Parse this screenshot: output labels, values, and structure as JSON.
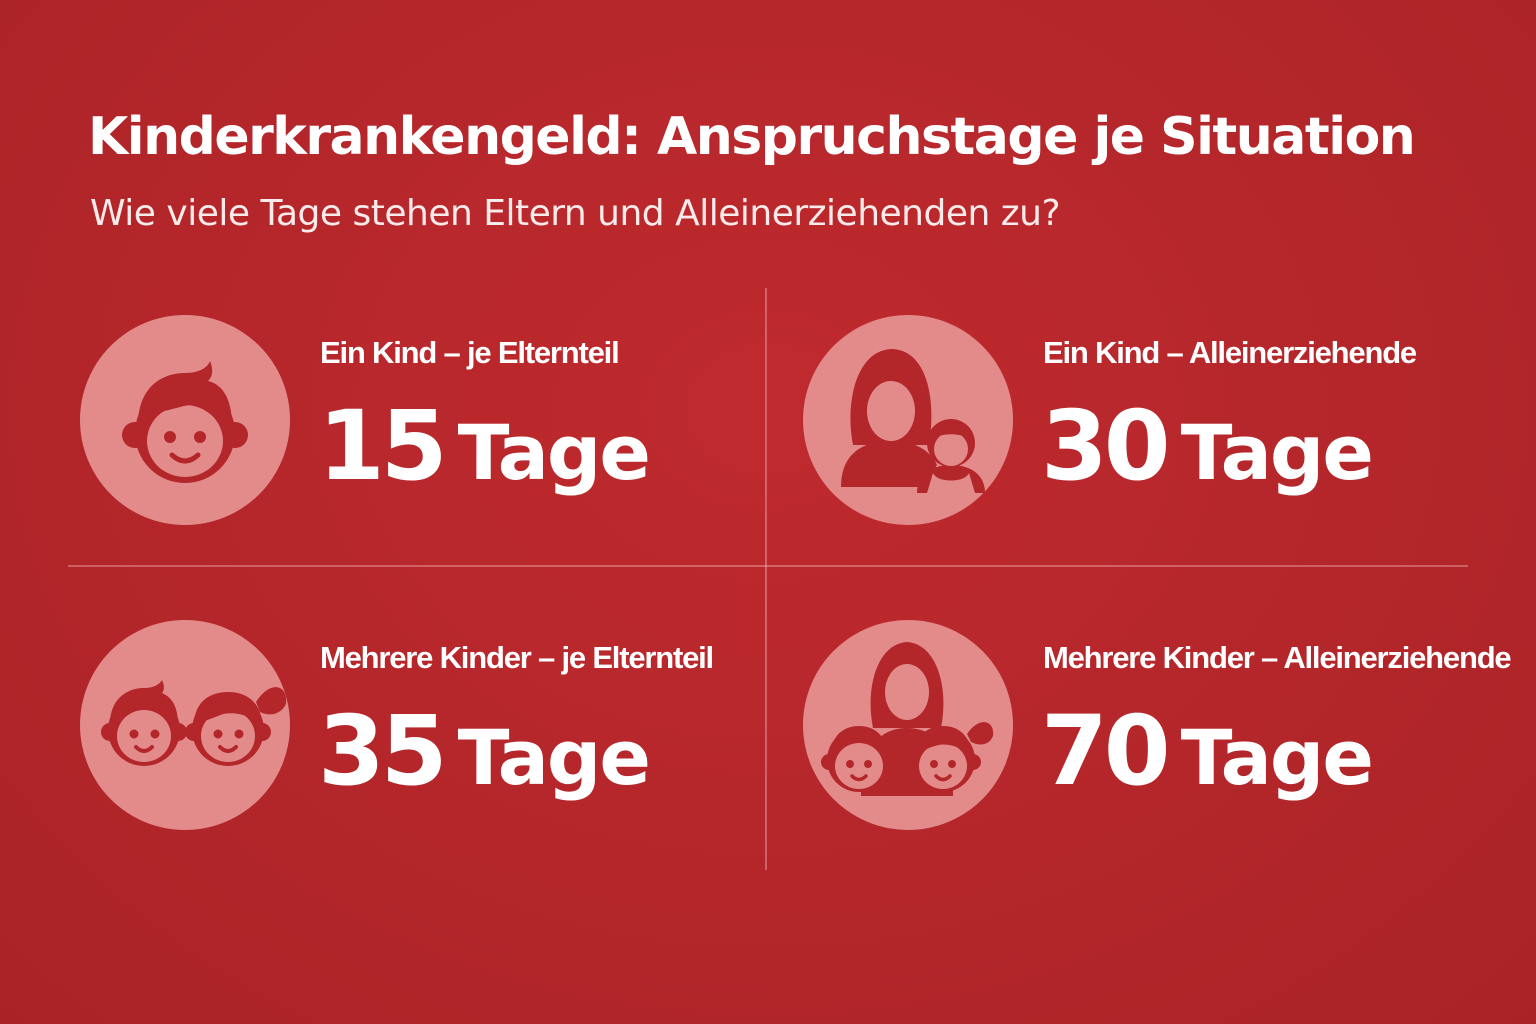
{
  "header": {
    "title": "Kinderkrankengeld: Anspruchstage je Situation",
    "subtitle": "Wie viele Tage stehen Eltern und Alleinerziehenden zu?"
  },
  "colors": {
    "background": "#b5262a",
    "icon_circle": "#e38b8b",
    "icon_fill": "#b3262a",
    "text": "#ffffff"
  },
  "cards": [
    {
      "label": "Ein Kind – je Elternteil",
      "number": "15",
      "unit": "Tage",
      "icon": "child-face-icon"
    },
    {
      "label": "Ein Kind – Alleinerziehende",
      "number": "30",
      "unit": "Tage",
      "icon": "single-parent-with-child-icon"
    },
    {
      "label": "Mehrere Kinder – je Elternteil",
      "number": "35",
      "unit": "Tage",
      "icon": "two-children-icon"
    },
    {
      "label": "Mehrere Kinder – Alleinerziehende",
      "number": "70",
      "unit": "Tage",
      "icon": "single-parent-with-two-children-icon"
    }
  ]
}
